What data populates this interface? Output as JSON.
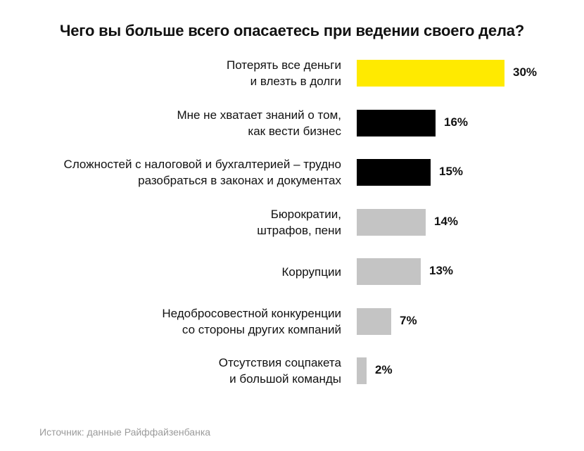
{
  "chart_data": {
    "type": "bar",
    "orientation": "horizontal",
    "title": "Чего вы больше всего опасаетесь при ведении своего дела?",
    "categories": [
      [
        "Потерять все деньги",
        "и влезть в долги"
      ],
      [
        "Мне не хватает знаний о том,",
        "как вести бизнес"
      ],
      [
        "Сложностей с налоговой и бухгалтерией – трудно",
        "разобраться в законах и документах"
      ],
      [
        "Бюрократии,",
        "штрафов, пени"
      ],
      [
        "Коррупции"
      ],
      [
        "Недобросовестной конкуренции",
        "со стороны других компаний"
      ],
      [
        "Отсутствия соцпакета",
        "и большой команды"
      ]
    ],
    "values": [
      30,
      16,
      15,
      14,
      13,
      7,
      2
    ],
    "value_labels": [
      "30%",
      "16%",
      "15%",
      "14%",
      "13%",
      "7%",
      "2%"
    ],
    "bar_colors": [
      "#FFEA00",
      "#000000",
      "#000000",
      "#C4C4C4",
      "#C4C4C4",
      "#C4C4C4",
      "#C4C4C4"
    ],
    "unit": "%",
    "xlim": [
      0,
      30
    ],
    "grid": false,
    "legend": "none"
  },
  "source_text": "Источник: данные Райффайзенбанка"
}
